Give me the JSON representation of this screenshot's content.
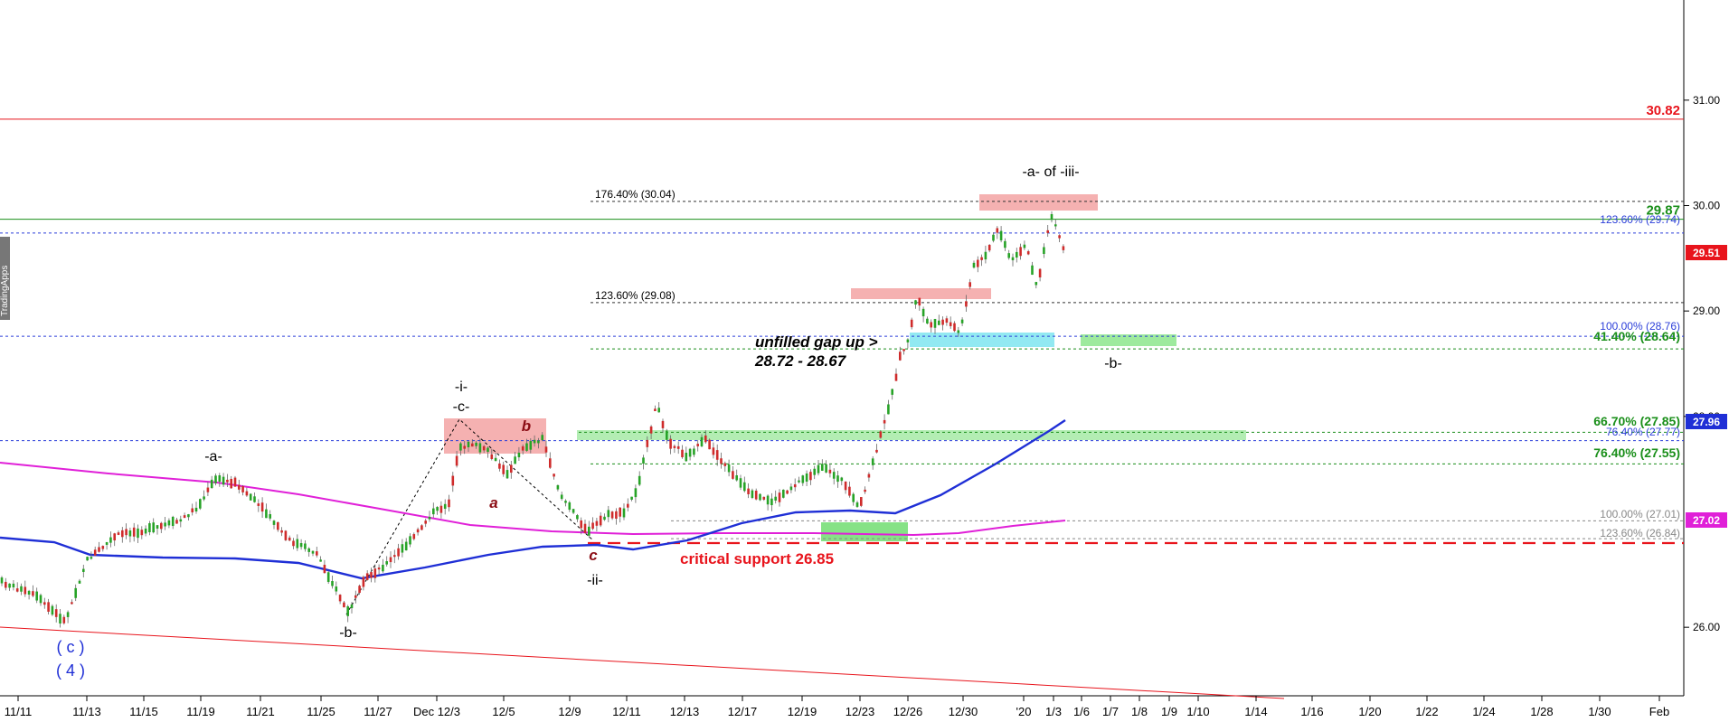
{
  "watermark": "TradingApps",
  "chart_data": {
    "type": "candlestick",
    "y_range": [
      25.35,
      31.95
    ],
    "y_ticks": [
      {
        "value": 26.0,
        "label": "26.00"
      },
      {
        "value": 28.0,
        "label": "28.00"
      },
      {
        "value": 29.0,
        "label": "29.00"
      },
      {
        "value": 30.0,
        "label": "30.00"
      },
      {
        "value": 31.0,
        "label": "31.00"
      }
    ],
    "x_ticks": [
      "11/11",
      "11/13",
      "11/15",
      "11/19",
      "11/21",
      "11/25",
      "11/27",
      "Dec 12/3",
      "12/5",
      "12/9",
      "12/11",
      "12/13",
      "12/17",
      "12/19",
      "12/23",
      "12/26",
      "12/30",
      "'20",
      "1/3",
      "1/6",
      "1/7",
      "1/8",
      "1/9",
      "1/10",
      "1/14",
      "1/16",
      "1/20",
      "1/22",
      "1/24",
      "1/28",
      "1/30",
      "Feb"
    ],
    "last_price": {
      "label": "29.51",
      "value": 29.51,
      "color": "#e8141c"
    },
    "ma_blue": {
      "label": "27.96",
      "value": 27.96,
      "color": "#1f2fd6"
    },
    "ma_magenta": {
      "label": "27.02",
      "value": 27.02,
      "color": "#e020d8"
    },
    "levels": [
      {
        "name": "resistance-30-82",
        "value": 30.82,
        "label": "30.82",
        "color": "#e8141c",
        "style": "solid"
      },
      {
        "name": "level-29-87",
        "value": 29.87,
        "label": "29.87",
        "color": "#1a8f1a",
        "style": "solid"
      },
      {
        "name": "fib-176",
        "value": 30.04,
        "label": "176.40% (30.04)",
        "color": "#333333",
        "style": "dotted",
        "label_side": "left"
      },
      {
        "name": "fib-123-blue",
        "value": 29.74,
        "label": "123.60% (29.74)",
        "color": "#2b3ed9",
        "style": "dotted"
      },
      {
        "name": "fib-123-black",
        "value": 29.08,
        "label": "123.60% (29.08)",
        "color": "#333333",
        "style": "dotted",
        "label_side": "left"
      },
      {
        "name": "fib-100-blue",
        "value": 28.76,
        "label": "100.00% (28.76)",
        "color": "#2b3ed9",
        "style": "dotted"
      },
      {
        "name": "fib-41-green",
        "value": 28.64,
        "label": "41.40% (28.64)",
        "color": "#1a8f1a",
        "style": "dotted"
      },
      {
        "name": "fib-66-green",
        "value": 27.85,
        "label": "66.70% (27.85)",
        "color": "#1a8f1a",
        "style": "dotted"
      },
      {
        "name": "fib-76-blue",
        "value": 27.77,
        "label": "76.40% (27.77)",
        "color": "#2b3ed9",
        "style": "dotted"
      },
      {
        "name": "fib-76-green",
        "value": 27.55,
        "label": "76.40% (27.55)",
        "color": "#1a8f1a",
        "style": "dotted"
      },
      {
        "name": "fib-100-gray",
        "value": 27.01,
        "label": "100.00% (27.01)",
        "color": "#888888",
        "style": "dotted"
      },
      {
        "name": "fib-123-gray",
        "value": 26.84,
        "label": "123.60% (26.84)",
        "color": "#888888",
        "style": "dotted"
      }
    ],
    "annotations": {
      "wave_a_of_iii": "-a- of -iii-",
      "unfilled_gap_line1": "unfilled gap up >",
      "unfilled_gap_line2": "28.72 - 28.67",
      "critical_support": "critical support 26.85",
      "wave_b_future": "-b-",
      "wave_i": "-i-",
      "wave_c_upper": "-c-",
      "wave_a_upper": "-a-",
      "wave_b_low": "-b-",
      "wave_ii": "-ii-",
      "small_a": "a",
      "small_b": "b",
      "small_c": "c",
      "wave_c_paren": "( c )",
      "wave_4_paren": "( 4 )"
    }
  }
}
